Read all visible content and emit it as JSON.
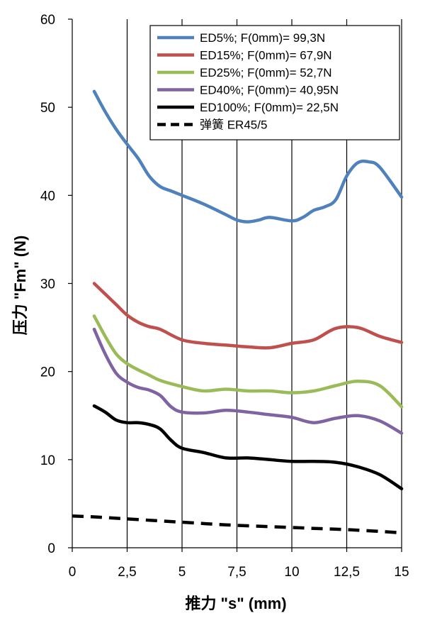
{
  "chart_data": {
    "type": "line",
    "xlabel": "推力 \"s\" (mm)",
    "ylabel": "压力 \"Fm\" (N)",
    "xlim": [
      0,
      15
    ],
    "ylim": [
      0,
      60
    ],
    "xticks": [
      "0",
      "2,5",
      "5",
      "7,5",
      "10",
      "12,5",
      "15"
    ],
    "yticks": [
      "0",
      "10",
      "20",
      "30",
      "40",
      "50",
      "60"
    ],
    "grid": "vertical",
    "legend_position": "top-right",
    "series": [
      {
        "name": "ED5%; F(0mm)= 99,3N",
        "color": "#4F81BD",
        "dash": "solid",
        "points": [
          [
            1,
            51.8
          ],
          [
            1.5,
            49.5
          ],
          [
            2,
            47.5
          ],
          [
            2.5,
            45.8
          ],
          [
            3,
            44.2
          ],
          [
            3.5,
            42.2
          ],
          [
            4,
            41
          ],
          [
            4.5,
            40.5
          ],
          [
            5,
            40
          ],
          [
            6,
            39
          ],
          [
            7,
            37.8
          ],
          [
            7.5,
            37.2
          ],
          [
            8,
            37
          ],
          [
            8.5,
            37.2
          ],
          [
            9,
            37.5
          ],
          [
            10,
            37.1
          ],
          [
            10.5,
            37.5
          ],
          [
            11,
            38.3
          ],
          [
            11.5,
            38.7
          ],
          [
            12,
            39.5
          ],
          [
            12.5,
            42.2
          ],
          [
            13,
            43.7
          ],
          [
            13.5,
            43.8
          ],
          [
            14,
            43.2
          ],
          [
            15,
            39.8
          ]
        ]
      },
      {
        "name": "ED15%; F(0mm)= 67,9N",
        "color": "#C0504D",
        "dash": "solid",
        "points": [
          [
            1,
            30
          ],
          [
            1.5,
            28.8
          ],
          [
            2,
            27.6
          ],
          [
            2.5,
            26.4
          ],
          [
            3,
            25.6
          ],
          [
            3.5,
            25.1
          ],
          [
            4,
            24.8
          ],
          [
            5,
            23.6
          ],
          [
            6,
            23.2
          ],
          [
            7,
            23
          ],
          [
            8,
            22.8
          ],
          [
            9,
            22.7
          ],
          [
            10,
            23.2
          ],
          [
            11,
            23.6
          ],
          [
            12,
            24.9
          ],
          [
            13,
            25
          ],
          [
            14,
            24
          ],
          [
            15,
            23.3
          ]
        ]
      },
      {
        "name": "ED25%; F(0mm)= 52,7N",
        "color": "#9BBB59",
        "dash": "solid",
        "points": [
          [
            1,
            26.3
          ],
          [
            1.5,
            24
          ],
          [
            2,
            22
          ],
          [
            2.5,
            20.9
          ],
          [
            3,
            20.2
          ],
          [
            3.5,
            19.6
          ],
          [
            4,
            19
          ],
          [
            5,
            18.3
          ],
          [
            6,
            17.8
          ],
          [
            7,
            18
          ],
          [
            8,
            17.8
          ],
          [
            9,
            17.8
          ],
          [
            10,
            17.6
          ],
          [
            11,
            17.8
          ],
          [
            12,
            18.4
          ],
          [
            13,
            18.9
          ],
          [
            14,
            18.4
          ],
          [
            15,
            16
          ]
        ]
      },
      {
        "name": "ED40%; F(0mm)= 40,95N",
        "color": "#8064A2",
        "dash": "solid",
        "points": [
          [
            1,
            24.8
          ],
          [
            1.5,
            22
          ],
          [
            2,
            19.8
          ],
          [
            2.5,
            18.8
          ],
          [
            3,
            18.2
          ],
          [
            3.5,
            17.9
          ],
          [
            4,
            17.3
          ],
          [
            4.5,
            16
          ],
          [
            5,
            15.4
          ],
          [
            6,
            15.3
          ],
          [
            7,
            15.6
          ],
          [
            8,
            15.4
          ],
          [
            9,
            15.1
          ],
          [
            10,
            14.8
          ],
          [
            11,
            14.2
          ],
          [
            12,
            14.7
          ],
          [
            13,
            15
          ],
          [
            14,
            14.4
          ],
          [
            15,
            13
          ]
        ]
      },
      {
        "name": "ED100%; F(0mm)= 22,5N",
        "color": "#000000",
        "dash": "solid",
        "points": [
          [
            1,
            16.1
          ],
          [
            1.5,
            15.4
          ],
          [
            2,
            14.5
          ],
          [
            2.5,
            14.2
          ],
          [
            3,
            14.2
          ],
          [
            3.5,
            14
          ],
          [
            4,
            13.5
          ],
          [
            4.5,
            12.2
          ],
          [
            5,
            11.3
          ],
          [
            6,
            10.8
          ],
          [
            7,
            10.2
          ],
          [
            8,
            10.2
          ],
          [
            9,
            10
          ],
          [
            10,
            9.8
          ],
          [
            11,
            9.8
          ],
          [
            12,
            9.7
          ],
          [
            13,
            9.2
          ],
          [
            14,
            8.3
          ],
          [
            15,
            6.7
          ]
        ]
      },
      {
        "name": "弹簧      ER45/5",
        "color": "#000000",
        "dash": "dashed",
        "points": [
          [
            0,
            3.6
          ],
          [
            1,
            3.5
          ],
          [
            3,
            3.2
          ],
          [
            5,
            2.9
          ],
          [
            7,
            2.6
          ],
          [
            9,
            2.4
          ],
          [
            11,
            2.2
          ],
          [
            13,
            2
          ],
          [
            15,
            1.7
          ]
        ]
      }
    ]
  }
}
